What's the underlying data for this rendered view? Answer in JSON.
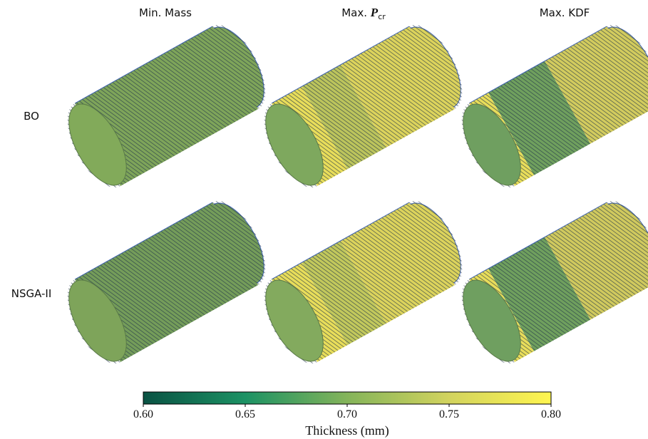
{
  "columns": [
    {
      "text": "Min. Mass"
    },
    {
      "text": "Max.",
      "symbol": "P",
      "subscript": "cr"
    },
    {
      "text": "Max. KDF"
    }
  ],
  "rows": [
    "BO",
    "NSGA-II"
  ],
  "colorbar": {
    "label": "Thickness (mm)",
    "lim": [
      0.6,
      0.8
    ],
    "ticks": [
      {
        "value": 0.6,
        "label": "0.60"
      },
      {
        "value": 0.65,
        "label": "0.65"
      },
      {
        "value": 0.7,
        "label": "0.70"
      },
      {
        "value": 0.75,
        "label": "0.75"
      },
      {
        "value": 0.8,
        "label": "0.80"
      }
    ],
    "colors": [
      "#0a5243",
      "#1c9264",
      "#84b45a",
      "#d2d35e",
      "#fff54f"
    ]
  }
}
